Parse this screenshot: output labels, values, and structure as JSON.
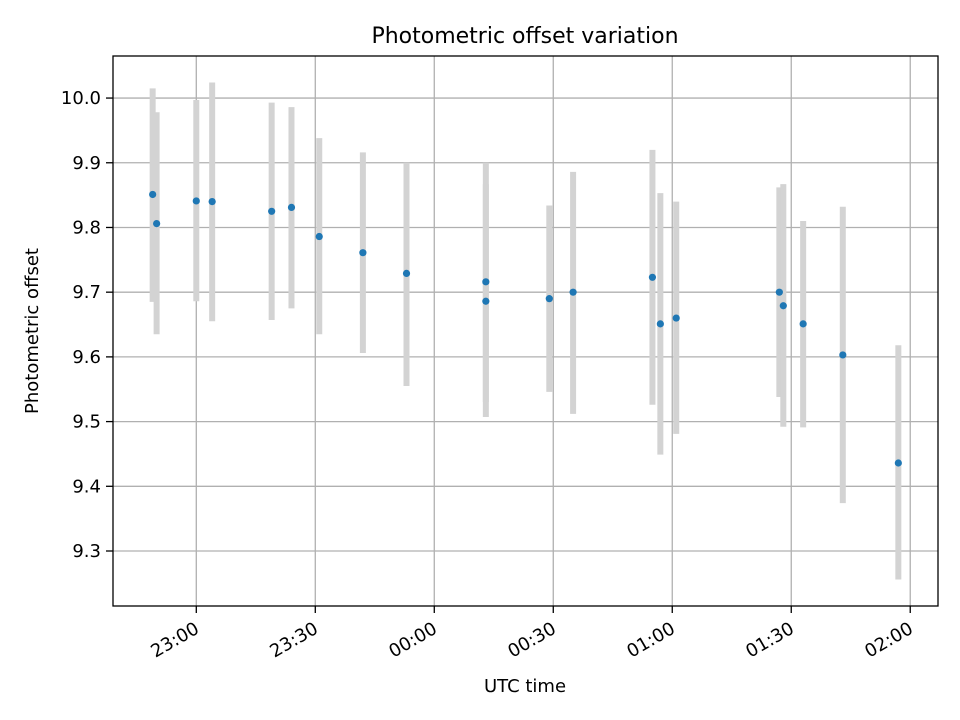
{
  "chart_data": {
    "type": "scatter",
    "title": "Photometric offset variation",
    "xlabel": "UTC time",
    "ylabel": "Photometric offset",
    "x_axis": {
      "kind": "time",
      "range": [
        "22:39",
        "02:07"
      ],
      "ticks": [
        "23:00",
        "23:30",
        "00:00",
        "00:30",
        "01:00",
        "01:30",
        "02:00"
      ]
    },
    "y_axis": {
      "range": [
        9.215,
        10.065
      ],
      "ticks": [
        "9.3",
        "9.4",
        "9.5",
        "9.6",
        "9.7",
        "9.8",
        "9.9",
        "10.0"
      ]
    },
    "grid": true,
    "colors": {
      "point": "#1f77b4",
      "errorbar": "#d3d3d3",
      "grid": "#b0b0b0"
    },
    "points": [
      {
        "t": "22:49",
        "y": 9.851,
        "lo": 9.685,
        "hi": 10.015
      },
      {
        "t": "22:50",
        "y": 9.806,
        "lo": 9.635,
        "hi": 9.978
      },
      {
        "t": "23:00",
        "y": 9.841,
        "lo": 9.686,
        "hi": 9.997
      },
      {
        "t": "23:04",
        "y": 9.84,
        "lo": 9.655,
        "hi": 10.024
      },
      {
        "t": "23:19",
        "y": 9.825,
        "lo": 9.657,
        "hi": 9.993
      },
      {
        "t": "23:24",
        "y": 9.831,
        "lo": 9.675,
        "hi": 9.986
      },
      {
        "t": "23:31",
        "y": 9.786,
        "lo": 9.635,
        "hi": 9.938
      },
      {
        "t": "23:42",
        "y": 9.761,
        "lo": 9.606,
        "hi": 9.916
      },
      {
        "t": "23:53",
        "y": 9.729,
        "lo": 9.555,
        "hi": 9.9
      },
      {
        "t": "00:13",
        "y": 9.686,
        "lo": 9.507,
        "hi": 9.867
      },
      {
        "t": "00:13",
        "y": 9.716,
        "lo": 9.53,
        "hi": 9.9
      },
      {
        "t": "00:29",
        "y": 9.69,
        "lo": 9.546,
        "hi": 9.834
      },
      {
        "t": "00:35",
        "y": 9.7,
        "lo": 9.512,
        "hi": 9.886
      },
      {
        "t": "00:55",
        "y": 9.723,
        "lo": 9.526,
        "hi": 9.92
      },
      {
        "t": "00:57",
        "y": 9.651,
        "lo": 9.449,
        "hi": 9.853
      },
      {
        "t": "01:01",
        "y": 9.66,
        "lo": 9.481,
        "hi": 9.84
      },
      {
        "t": "01:27",
        "y": 9.7,
        "lo": 9.538,
        "hi": 9.862
      },
      {
        "t": "01:28",
        "y": 9.679,
        "lo": 9.492,
        "hi": 9.867
      },
      {
        "t": "01:33",
        "y": 9.651,
        "lo": 9.491,
        "hi": 9.81
      },
      {
        "t": "01:43",
        "y": 9.603,
        "lo": 9.374,
        "hi": 9.832
      },
      {
        "t": "01:57",
        "y": 9.436,
        "lo": 9.256,
        "hi": 9.618
      }
    ]
  }
}
